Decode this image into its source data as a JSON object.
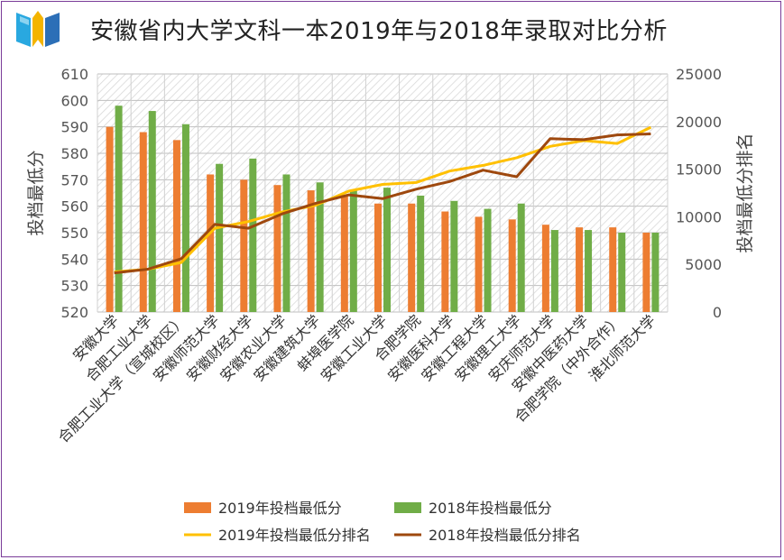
{
  "title": "安徽省内大学文科一本2019年与2018年录取对比分析",
  "colors": {
    "bar2019": "#ed7d31",
    "bar2018": "#70ad47",
    "line2019": "#ffc000",
    "line2018": "#9e480e",
    "frame": "#7a3b98"
  },
  "chart_data": {
    "type": "bar",
    "categories": [
      "安徽大学",
      "合肥工业大学",
      "合肥工业大学（宣城校区）",
      "安徽师范大学",
      "安徽财经大学",
      "安徽农业大学",
      "安徽建筑大学",
      "蚌埠医学院",
      "安徽工业大学",
      "合肥学院",
      "安徽医科大学",
      "安徽工程大学",
      "安徽理工大学",
      "安庆师范大学",
      "安徽中医药大学",
      "合肥学院（中外合作）",
      "淮北师范大学"
    ],
    "ylabel": "投档最低分",
    "y2label": "投档最低分排名",
    "ylim": [
      520,
      610
    ],
    "y2lim": [
      0,
      25000
    ],
    "yticks": [
      "610",
      "600",
      "590",
      "580",
      "570",
      "560",
      "550",
      "540",
      "530",
      "520"
    ],
    "y2ticks": [
      "25000",
      "20000",
      "15000",
      "10000",
      "5000",
      "0"
    ],
    "grid": true,
    "legend_position": "bottom",
    "series": [
      {
        "name": "2019年投档最低分",
        "type": "bar",
        "axis": "left",
        "values": [
          590,
          588,
          585,
          572,
          570,
          568,
          566,
          564,
          561,
          561,
          558,
          556,
          555,
          553,
          552,
          552,
          550
        ]
      },
      {
        "name": "2018年投档最低分",
        "type": "bar",
        "axis": "left",
        "values": [
          598,
          596,
          591,
          576,
          578,
          572,
          569,
          566,
          567,
          564,
          562,
          559,
          561,
          551,
          551,
          550,
          550
        ]
      },
      {
        "name": "2019年投档最低分排名",
        "type": "line",
        "axis": "right",
        "values": [
          4200,
          4500,
          5200,
          8800,
          9500,
          10500,
          11200,
          12700,
          13400,
          13600,
          14800,
          15400,
          16200,
          17400,
          18000,
          17700,
          19400
        ]
      },
      {
        "name": "2018年投档最低分排名",
        "type": "line",
        "axis": "right",
        "values": [
          4100,
          4500,
          5600,
          9200,
          8800,
          10300,
          11400,
          12300,
          11900,
          12900,
          13700,
          14900,
          14200,
          18200,
          18100,
          18600,
          18700
        ]
      }
    ]
  }
}
